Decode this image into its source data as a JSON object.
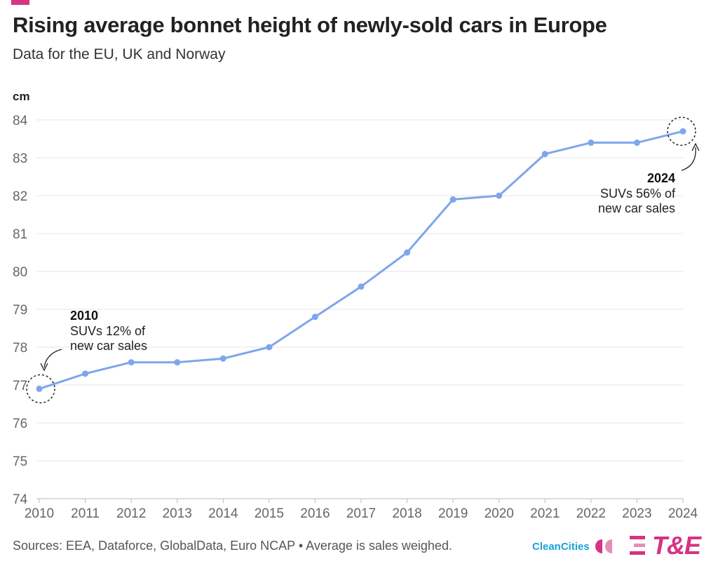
{
  "header": {
    "title": "Rising average bonnet height of newly-sold cars in Europe",
    "subtitle": "Data for the EU, UK and Norway"
  },
  "footer": {
    "source": "Sources: EEA, Dataforce, GlobalData, Euro NCAP • Average is sales weighed.",
    "logo_cleancities": "CleanCities",
    "logo_te": "T&E"
  },
  "colors": {
    "line": "#7ea6ec",
    "accent": "#d63384",
    "te_brand": "#d63384",
    "cleancities": "#1aa3d9"
  },
  "chart_data": {
    "type": "line",
    "ylabel": "cm",
    "xlabel": "",
    "ylim": [
      74,
      84
    ],
    "yticks": [
      74,
      75,
      76,
      77,
      78,
      79,
      80,
      81,
      82,
      83,
      84
    ],
    "grid": true,
    "categories": [
      "2010",
      "2011",
      "2012",
      "2013",
      "2014",
      "2015",
      "2016",
      "2017",
      "2018",
      "2019",
      "2020",
      "2021",
      "2022",
      "2023",
      "2024"
    ],
    "series": [
      {
        "values": [
          76.9,
          77.3,
          77.6,
          77.6,
          77.7,
          78.0,
          78.8,
          79.6,
          80.5,
          81.9,
          82.0,
          83.1,
          83.4,
          83.4,
          83.7
        ]
      }
    ],
    "annotations": [
      {
        "x": "2010",
        "title": "2010",
        "lines": [
          "SUVs 12% of",
          "new car sales"
        ]
      },
      {
        "x": "2024",
        "title": "2024",
        "lines": [
          "SUVs 56% of",
          "new car sales"
        ]
      }
    ]
  }
}
